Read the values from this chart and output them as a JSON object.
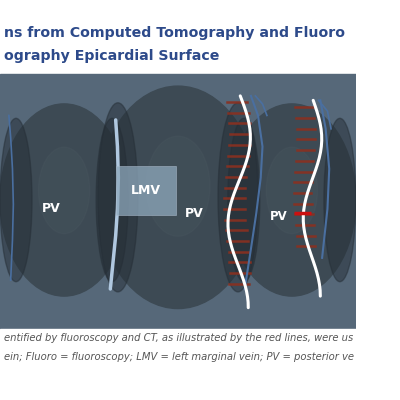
{
  "title_line1": "ns from Computed Tomography and Fluoro",
  "title_line2": "ography Epicardial Surface",
  "title_color": "#2d4a8a",
  "title_fontsize": 10.5,
  "bg_color": "#566879",
  "heart_color": "#3d4a54",
  "heart_highlight_color": "#4a5860",
  "caption_line1": "entified by fluoroscopy and CT, as illustrated by the red lines, were us",
  "caption_line2": "ein; Fluoro = fluoroscopy; LMV = left marginal vein; PV = posterior ve",
  "caption_color": "#555555",
  "caption_fontsize": 7.5,
  "label_LMV": "LMV",
  "label_PV": "PV",
  "white_color": "#ffffff",
  "blue_vein_color": "#4a6fa0",
  "red_hatch_color": "#8b3020",
  "red_marker_color": "#cc1010",
  "image_bg": "#ffffff",
  "lmv_box_color": "#aabbcc",
  "title_bg": "#ffffff",
  "caption_bg": "#ffffff"
}
